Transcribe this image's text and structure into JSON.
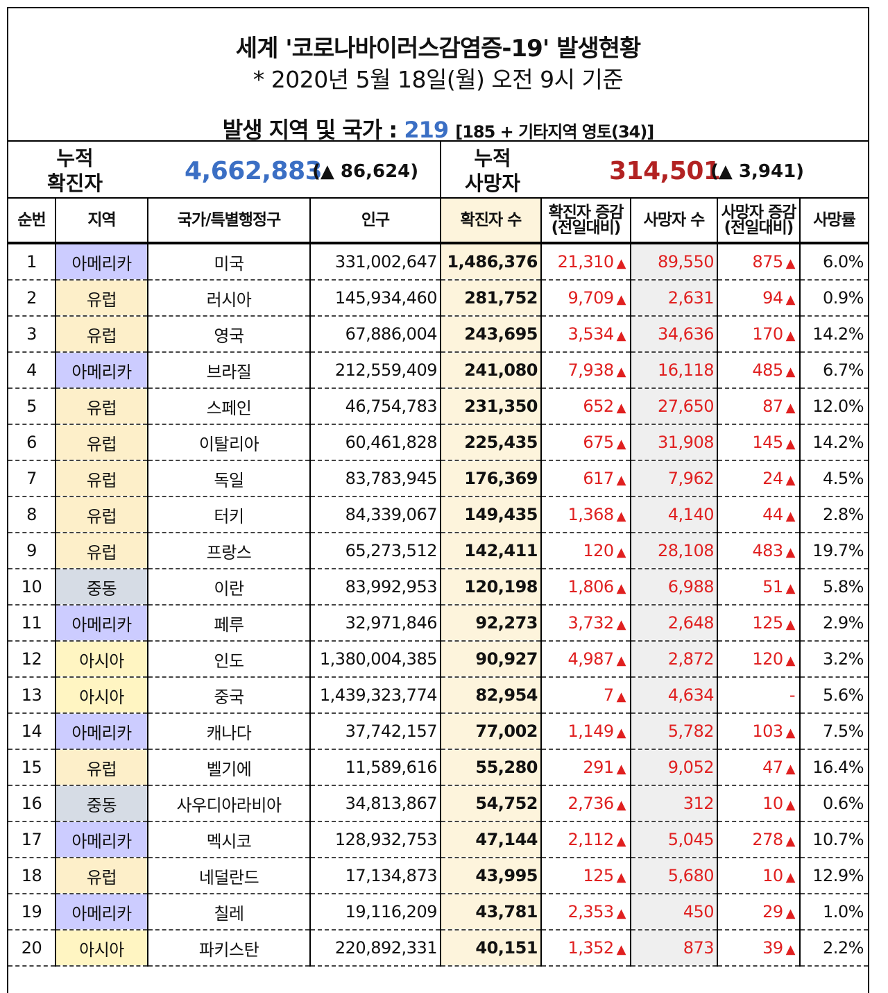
{
  "title": "세계 '코로나바이러스감염증-19' 발생현황",
  "subtitle": "* 2020년 5월 18일(월) 오전 9시 기준",
  "regions_line": {
    "label": "발생 지역 및 국가 :",
    "count": "219",
    "detail": "[185 + 기타지역 영토(34)]"
  },
  "summary": {
    "cases_label_1": "누적",
    "cases_label_2": "확진자",
    "cases_total": "4,662,883",
    "cases_increase": "(▲ 86,624)",
    "deaths_label_1": "누적",
    "deaths_label_2": "사망자",
    "deaths_total": "314,501",
    "deaths_increase": "(▲ 3,941)"
  },
  "colors": {
    "cases_blue": "#3b6fc4",
    "deaths_red": "#b22222",
    "increase_red": "#e02020",
    "region_americas": "#ccccff",
    "region_europe": "#fdefc9",
    "region_mideast": "#d6dce5",
    "region_asia": "#fff5c2"
  },
  "headers": {
    "rank": "순번",
    "region": "지역",
    "country": "국가/특별행정구",
    "population": "인구",
    "cases": "확진자 수",
    "cases_inc_1": "확진자 증감",
    "cases_inc_2": "(전일대비)",
    "deaths": "사망자 수",
    "deaths_inc_1": "사망자 증감",
    "deaths_inc_2": "(전일대비)",
    "rate": "사망률"
  },
  "rows": [
    {
      "rank": "1",
      "region": "아메리카",
      "rc": "am",
      "country": "미국",
      "population": "331,002,647",
      "cases": "1,486,376",
      "cases_inc": "21,310",
      "deaths": "89,550",
      "deaths_inc": "875",
      "rate": "6.0%"
    },
    {
      "rank": "2",
      "region": "유럽",
      "rc": "eu",
      "country": "러시아",
      "population": "145,934,460",
      "cases": "281,752",
      "cases_inc": "9,709",
      "deaths": "2,631",
      "deaths_inc": "94",
      "rate": "0.9%"
    },
    {
      "rank": "3",
      "region": "유럽",
      "rc": "eu",
      "country": "영국",
      "population": "67,886,004",
      "cases": "243,695",
      "cases_inc": "3,534",
      "deaths": "34,636",
      "deaths_inc": "170",
      "rate": "14.2%"
    },
    {
      "rank": "4",
      "region": "아메리카",
      "rc": "am",
      "country": "브라질",
      "population": "212,559,409",
      "cases": "241,080",
      "cases_inc": "7,938",
      "deaths": "16,118",
      "deaths_inc": "485",
      "rate": "6.7%"
    },
    {
      "rank": "5",
      "region": "유럽",
      "rc": "eu",
      "country": "스페인",
      "population": "46,754,783",
      "cases": "231,350",
      "cases_inc": "652",
      "deaths": "27,650",
      "deaths_inc": "87",
      "rate": "12.0%"
    },
    {
      "rank": "6",
      "region": "유럽",
      "rc": "eu",
      "country": "이탈리아",
      "population": "60,461,828",
      "cases": "225,435",
      "cases_inc": "675",
      "deaths": "31,908",
      "deaths_inc": "145",
      "rate": "14.2%"
    },
    {
      "rank": "7",
      "region": "유럽",
      "rc": "eu",
      "country": "독일",
      "population": "83,783,945",
      "cases": "176,369",
      "cases_inc": "617",
      "deaths": "7,962",
      "deaths_inc": "24",
      "rate": "4.5%"
    },
    {
      "rank": "8",
      "region": "유럽",
      "rc": "eu",
      "country": "터키",
      "population": "84,339,067",
      "cases": "149,435",
      "cases_inc": "1,368",
      "deaths": "4,140",
      "deaths_inc": "44",
      "rate": "2.8%"
    },
    {
      "rank": "9",
      "region": "유럽",
      "rc": "eu",
      "country": "프랑스",
      "population": "65,273,512",
      "cases": "142,411",
      "cases_inc": "120",
      "deaths": "28,108",
      "deaths_inc": "483",
      "rate": "19.7%"
    },
    {
      "rank": "10",
      "region": "중동",
      "rc": "me",
      "country": "이란",
      "population": "83,992,953",
      "cases": "120,198",
      "cases_inc": "1,806",
      "deaths": "6,988",
      "deaths_inc": "51",
      "rate": "5.8%"
    },
    {
      "rank": "11",
      "region": "아메리카",
      "rc": "am",
      "country": "페루",
      "population": "32,971,846",
      "cases": "92,273",
      "cases_inc": "3,732",
      "deaths": "2,648",
      "deaths_inc": "125",
      "rate": "2.9%"
    },
    {
      "rank": "12",
      "region": "아시아",
      "rc": "as",
      "country": "인도",
      "population": "1,380,004,385",
      "cases": "90,927",
      "cases_inc": "4,987",
      "deaths": "2,872",
      "deaths_inc": "120",
      "rate": "3.2%"
    },
    {
      "rank": "13",
      "region": "아시아",
      "rc": "as",
      "country": "중국",
      "population": "1,439,323,774",
      "cases": "82,954",
      "cases_inc": "7",
      "deaths": "4,634",
      "deaths_inc": "-",
      "rate": "5.6%"
    },
    {
      "rank": "14",
      "region": "아메리카",
      "rc": "am",
      "country": "캐나다",
      "population": "37,742,157",
      "cases": "77,002",
      "cases_inc": "1,149",
      "deaths": "5,782",
      "deaths_inc": "103",
      "rate": "7.5%"
    },
    {
      "rank": "15",
      "region": "유럽",
      "rc": "eu",
      "country": "벨기에",
      "population": "11,589,616",
      "cases": "55,280",
      "cases_inc": "291",
      "deaths": "9,052",
      "deaths_inc": "47",
      "rate": "16.4%"
    },
    {
      "rank": "16",
      "region": "중동",
      "rc": "me",
      "country": "사우디아라비아",
      "population": "34,813,867",
      "cases": "54,752",
      "cases_inc": "2,736",
      "deaths": "312",
      "deaths_inc": "10",
      "rate": "0.6%"
    },
    {
      "rank": "17",
      "region": "아메리카",
      "rc": "am",
      "country": "멕시코",
      "population": "128,932,753",
      "cases": "47,144",
      "cases_inc": "2,112",
      "deaths": "5,045",
      "deaths_inc": "278",
      "rate": "10.7%"
    },
    {
      "rank": "18",
      "region": "유럽",
      "rc": "eu",
      "country": "네덜란드",
      "population": "17,134,873",
      "cases": "43,995",
      "cases_inc": "125",
      "deaths": "5,680",
      "deaths_inc": "10",
      "rate": "12.9%"
    },
    {
      "rank": "19",
      "region": "아메리카",
      "rc": "am",
      "country": "칠레",
      "population": "19,116,209",
      "cases": "43,781",
      "cases_inc": "2,353",
      "deaths": "450",
      "deaths_inc": "29",
      "rate": "1.0%"
    },
    {
      "rank": "20",
      "region": "아시아",
      "rc": "as",
      "country": "파키스탄",
      "population": "220,892,331",
      "cases": "40,151",
      "cases_inc": "1,352",
      "deaths": "873",
      "deaths_inc": "39",
      "rate": "2.2%"
    }
  ]
}
